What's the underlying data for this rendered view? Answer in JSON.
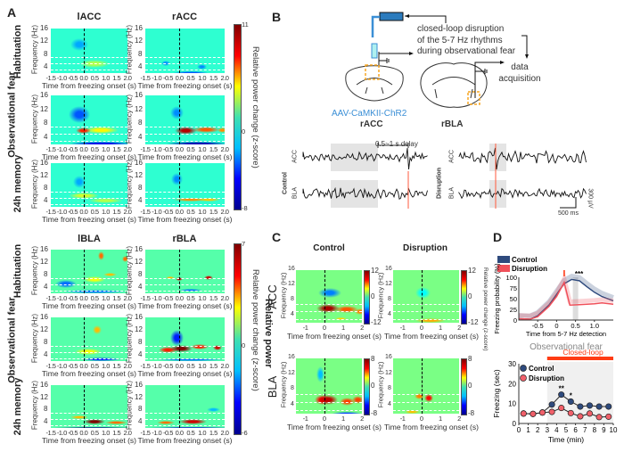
{
  "panel_labels": {
    "a": "A",
    "b": "B",
    "c": "C",
    "d": "D"
  },
  "panel_a": {
    "acc_columns": [
      "lACC",
      "rACC"
    ],
    "bla_columns": [
      "lBLA",
      "rBLA"
    ],
    "rows": [
      "Habituation",
      "Observational fear",
      "24h memory"
    ],
    "xlabel": "Time from freezing onset (s)",
    "ylabel": "Frequency (Hz)",
    "xticks": [
      "-1.5",
      "-1.0",
      "-0.5",
      "0.0",
      "0.5",
      "1.0",
      "1.5",
      "2.0"
    ],
    "yticks": [
      "4",
      "8",
      "12",
      "16"
    ],
    "acc_colorbar": {
      "max": "11",
      "mid": "0",
      "min": "-8",
      "label": "Relative power change (z-score)"
    },
    "bla_colorbar": {
      "max": "7",
      "mid": "0",
      "min": "-6",
      "label": "Relative power change (z-score)"
    },
    "side_label": "Relative power"
  },
  "panel_b": {
    "caption_lines": [
      "closed-loop disruption",
      "of the 5-7 Hz rhythms",
      "during observational fear"
    ],
    "data_acq_lines": [
      "data",
      "acquisition"
    ],
    "virus": "AAV-CaMKII-ChR2",
    "region_left": "rACC",
    "region_right": "rBLA",
    "delay": "0.5~1 s delay",
    "control": "Control",
    "disruption": "Disruption",
    "trace_acc": "ACC",
    "trace_bla": "BLA",
    "scale_time": "500 ms",
    "scale_volt": "300 µV",
    "colors": {
      "laser": "#2b7bbd",
      "virus_text": "#3b8fd6",
      "stim_line": "#ff5a3c",
      "roi_box": "#f5a623"
    }
  },
  "panel_c": {
    "columns": [
      "Control",
      "Disruption"
    ],
    "rows": [
      "ACC",
      "BLA"
    ],
    "xlabel": "Time from freezing onset (s)",
    "ylabel": "Frequency (Hz)",
    "xticks": [
      "-1",
      "0",
      "1",
      "2"
    ],
    "yticks": [
      "4",
      "8",
      "12",
      "16"
    ],
    "acc_colorbar": {
      "max": "12",
      "mid": "0",
      "min": "-12"
    },
    "bla_colorbar": {
      "max": "8",
      "mid": "0",
      "min": "-8"
    },
    "side_label": "Relative power change (z-score)"
  },
  "chart_data": [
    {
      "type": "heatmap",
      "panel": "A",
      "region": "lACC",
      "session": "Habituation",
      "xlim": [
        -1.5,
        2
      ],
      "ylim": [
        2,
        16
      ],
      "zlim": [
        -8,
        11
      ],
      "band_lines_hz": [
        3,
        5,
        7
      ],
      "hotspots": [
        {
          "t": 0.5,
          "f": 5,
          "z": 2.5,
          "wt": 0.7,
          "wf": 1.2
        },
        {
          "t": -0.2,
          "f": 11,
          "z": -2.5,
          "wt": 0.4,
          "wf": 2
        }
      ]
    },
    {
      "type": "heatmap",
      "panel": "A",
      "region": "rACC",
      "session": "Habituation",
      "xlim": [
        -1.5,
        2
      ],
      "ylim": [
        2,
        16
      ],
      "zlim": [
        -8,
        11
      ],
      "band_lines_hz": [
        3,
        5,
        7
      ],
      "hotspots": [
        {
          "t": -0.6,
          "f": 5,
          "z": -3,
          "wt": 0.2,
          "wf": 0.8
        },
        {
          "t": 1,
          "f": 4,
          "z": -3,
          "wt": 0.2,
          "wf": 0.8
        },
        {
          "t": 0.5,
          "f": 2.2,
          "z": -4,
          "wt": 0.8,
          "wf": 0.4
        }
      ]
    },
    {
      "type": "heatmap",
      "panel": "A",
      "region": "lACC",
      "session": "Observational fear",
      "xlim": [
        -1.5,
        2
      ],
      "ylim": [
        2,
        16
      ],
      "zlim": [
        -8,
        11
      ],
      "band_lines_hz": [
        3,
        5,
        7
      ],
      "hotspots": [
        {
          "t": -0.2,
          "f": 10.5,
          "z": -4,
          "wt": 0.5,
          "wf": 2.5
        },
        {
          "t": 0.8,
          "f": 6,
          "z": 4,
          "wt": 0.8,
          "wf": 1
        },
        {
          "t": 0,
          "f": 6,
          "z": 8,
          "wt": 0.35,
          "wf": 0.9
        },
        {
          "t": 0.8,
          "f": 2.3,
          "z": -6,
          "wt": 1.5,
          "wf": 0.5
        }
      ]
    },
    {
      "type": "heatmap",
      "panel": "A",
      "region": "rACC",
      "session": "Observational fear",
      "xlim": [
        -1.5,
        2
      ],
      "ylim": [
        2,
        16
      ],
      "zlim": [
        -8,
        11
      ],
      "band_lines_hz": [
        3,
        5,
        7
      ],
      "hotspots": [
        {
          "t": -0.1,
          "f": 11,
          "z": -3,
          "wt": 0.3,
          "wf": 2
        },
        {
          "t": 1.2,
          "f": 6.3,
          "z": 7,
          "wt": 0.6,
          "wf": 0.9
        },
        {
          "t": 1.9,
          "f": 6,
          "z": 6,
          "wt": 0.2,
          "wf": 0.8
        },
        {
          "t": 0.3,
          "f": 6,
          "z": 10,
          "wt": 0.5,
          "wf": 1.1
        },
        {
          "t": 0.8,
          "f": 2.3,
          "z": -7,
          "wt": 1.4,
          "wf": 0.5
        }
      ]
    },
    {
      "type": "heatmap",
      "panel": "A",
      "region": "lACC",
      "session": "24h memory",
      "xlim": [
        -1.5,
        2
      ],
      "ylim": [
        2,
        16
      ],
      "zlim": [
        -8,
        11
      ],
      "band_lines_hz": [
        3,
        5,
        7
      ],
      "hotspots": [
        {
          "t": -0.2,
          "f": 10,
          "z": -2.5,
          "wt": 0.3,
          "wf": 2
        },
        {
          "t": 0,
          "f": 5.5,
          "z": 3,
          "wt": 0.7,
          "wf": 1
        },
        {
          "t": 1,
          "f": 4,
          "z": 2.5,
          "wt": 0.8,
          "wf": 0.8
        }
      ]
    },
    {
      "type": "heatmap",
      "panel": "A",
      "region": "rACC",
      "session": "24h memory",
      "xlim": [
        -1.5,
        2
      ],
      "ylim": [
        2,
        16
      ],
      "zlim": [
        -8,
        11
      ],
      "band_lines_hz": [
        3,
        5,
        7
      ],
      "hotspots": [
        {
          "t": -0.1,
          "f": 11,
          "z": -3,
          "wt": 0.25,
          "wf": 2
        },
        {
          "t": 0.5,
          "f": 4.2,
          "z": 6,
          "wt": 0.8,
          "wf": 0.6
        },
        {
          "t": 1.3,
          "f": 4.2,
          "z": 5,
          "wt": 0.5,
          "wf": 0.6
        }
      ]
    },
    {
      "type": "heatmap",
      "panel": "A",
      "region": "lBLA",
      "session": "Habituation",
      "xlim": [
        -1.5,
        2
      ],
      "ylim": [
        2,
        16
      ],
      "zlim": [
        -6,
        7
      ],
      "band_lines_hz": [
        3,
        5,
        7
      ],
      "hotspots": [
        {
          "t": -0.8,
          "f": 5,
          "z": -3,
          "wt": 0.5,
          "wf": 1.2
        },
        {
          "t": 0.5,
          "f": 6.5,
          "z": 2,
          "wt": 0.5,
          "wf": 1
        },
        {
          "t": 1.2,
          "f": 8,
          "z": 3,
          "wt": 0.3,
          "wf": 0.6
        },
        {
          "t": 0.8,
          "f": 14,
          "z": 4,
          "wt": 0.15,
          "wf": 1.5
        },
        {
          "t": 1.9,
          "f": 13,
          "z": 4,
          "wt": 0.15,
          "wf": 1
        },
        {
          "t": 0.5,
          "f": 2.5,
          "z": -3,
          "wt": 1.5,
          "wf": 0.6
        }
      ]
    },
    {
      "type": "heatmap",
      "panel": "A",
      "region": "rBLA",
      "session": "Habituation",
      "xlim": [
        -1.5,
        2
      ],
      "ylim": [
        2,
        16
      ],
      "zlim": [
        -6,
        7
      ],
      "band_lines_hz": [
        3,
        5,
        7
      ],
      "hotspots": [
        {
          "t": -0.4,
          "f": 7,
          "z": 3,
          "wt": 0.2,
          "wf": 0.5
        },
        {
          "t": 0,
          "f": 6.5,
          "z": 6,
          "wt": 0.15,
          "wf": 0.6
        },
        {
          "t": 1.3,
          "f": 7,
          "z": 6,
          "wt": 0.2,
          "wf": 0.7
        },
        {
          "t": 0.5,
          "f": 3,
          "z": -3,
          "wt": 0.5,
          "wf": 0.5
        }
      ]
    },
    {
      "type": "heatmap",
      "panel": "A",
      "region": "lBLA",
      "session": "Observational fear",
      "xlim": [
        -1.5,
        2
      ],
      "ylim": [
        2,
        16
      ],
      "zlim": [
        -6,
        7
      ],
      "band_lines_hz": [
        3,
        5,
        7
      ],
      "hotspots": [
        {
          "t": 0.6,
          "f": 12,
          "z": 3,
          "wt": 0.2,
          "wf": 1.5
        },
        {
          "t": 0.2,
          "f": 5,
          "z": 2,
          "wt": 0.6,
          "wf": 1
        },
        {
          "t": 0.8,
          "f": 2.5,
          "z": -4,
          "wt": 0.9,
          "wf": 0.6
        }
      ]
    },
    {
      "type": "heatmap",
      "panel": "A",
      "region": "rBLA",
      "session": "Observational fear",
      "xlim": [
        -1.5,
        2
      ],
      "ylim": [
        2,
        16
      ],
      "zlim": [
        -6,
        7
      ],
      "band_lines_hz": [
        3,
        5,
        7
      ],
      "hotspots": [
        {
          "t": -0.1,
          "f": 9.5,
          "z": -4,
          "wt": 0.3,
          "wf": 2.5
        },
        {
          "t": -0.5,
          "f": 5.5,
          "z": 5,
          "wt": 0.4,
          "wf": 1
        },
        {
          "t": 0.9,
          "f": 6.5,
          "z": 5,
          "wt": 0.4,
          "wf": 0.8
        },
        {
          "t": 1.7,
          "f": 6.3,
          "z": 6,
          "wt": 0.2,
          "wf": 0.9
        },
        {
          "t": 0.1,
          "f": 6,
          "z": 7,
          "wt": 0.5,
          "wf": 1.1
        },
        {
          "t": 0.5,
          "f": 2.5,
          "z": -3,
          "wt": 1.5,
          "wf": 0.5
        }
      ]
    },
    {
      "type": "heatmap",
      "panel": "A",
      "region": "lBLA",
      "session": "24h memory",
      "xlim": [
        -1.5,
        2
      ],
      "ylim": [
        2,
        16
      ],
      "zlim": [
        -6,
        7
      ],
      "band_lines_hz": [
        3,
        5,
        7
      ],
      "hotspots": [
        {
          "t": -0.2,
          "f": 5.5,
          "z": 3,
          "wt": 0.4,
          "wf": 0.7
        },
        {
          "t": 1.5,
          "f": 3.7,
          "z": 4,
          "wt": 0.5,
          "wf": 0.6
        },
        {
          "t": 0.5,
          "f": 4,
          "z": 7,
          "wt": 0.5,
          "wf": 0.9
        },
        {
          "t": 0.5,
          "f": 2,
          "z": -6,
          "wt": 2,
          "wf": 0.3
        }
      ]
    },
    {
      "type": "heatmap",
      "panel": "A",
      "region": "rBLA",
      "session": "24h memory",
      "xlim": [
        -1.5,
        2
      ],
      "ylim": [
        2,
        16
      ],
      "zlim": [
        -6,
        7
      ],
      "band_lines_hz": [
        3,
        5,
        7
      ],
      "hotspots": [
        {
          "t": 1.5,
          "f": 8,
          "z": -2,
          "wt": 0.3,
          "wf": 0.8
        },
        {
          "t": -0.6,
          "f": 3.8,
          "z": 4,
          "wt": 0.4,
          "wf": 0.6
        },
        {
          "t": 0.6,
          "f": 4,
          "z": 6,
          "wt": 0.6,
          "wf": 0.9
        },
        {
          "t": 0.5,
          "f": 2,
          "z": -5,
          "wt": 2,
          "wf": 0.3
        }
      ]
    },
    {
      "type": "heatmap",
      "panel": "C",
      "region": "ACC",
      "group": "Control",
      "xlim": [
        -1.5,
        2
      ],
      "ylim": [
        2,
        16
      ],
      "zlim": [
        -12,
        12
      ],
      "band_lines_hz": [
        3,
        5,
        7
      ],
      "hotspots": [
        {
          "t": 0.3,
          "f": 10,
          "z": -6,
          "wt": 0.6,
          "wf": 1.3
        },
        {
          "t": 1.2,
          "f": 5.5,
          "z": 7,
          "wt": 0.6,
          "wf": 0.9
        },
        {
          "t": 1.9,
          "f": 5,
          "z": 6,
          "wt": 0.3,
          "wf": 0.8
        },
        {
          "t": 0.9,
          "f": 3,
          "z": 4,
          "wt": 0.3,
          "wf": 0.4
        },
        {
          "t": 0.2,
          "f": 5.8,
          "z": 11,
          "wt": 0.6,
          "wf": 1.2
        }
      ]
    },
    {
      "type": "heatmap",
      "panel": "C",
      "region": "ACC",
      "group": "Disruption",
      "xlim": [
        -1.5,
        2
      ],
      "ylim": [
        2,
        16
      ],
      "zlim": [
        -12,
        12
      ],
      "band_lines_hz": [
        3,
        5,
        7
      ],
      "hotspots": [
        {
          "t": 0.1,
          "f": 10,
          "z": -3,
          "wt": 0.4,
          "wf": 1.5
        },
        {
          "t": 0.5,
          "f": 2.5,
          "z": 5,
          "wt": 0.8,
          "wf": 0.6
        }
      ]
    },
    {
      "type": "heatmap",
      "panel": "C",
      "region": "BLA",
      "group": "Control",
      "xlim": [
        -1.5,
        2
      ],
      "ylim": [
        2,
        16
      ],
      "zlim": [
        -8,
        8
      ],
      "band_lines_hz": [
        3,
        5,
        7
      ],
      "hotspots": [
        {
          "t": -0.2,
          "f": 12,
          "z": -3,
          "wt": 0.2,
          "wf": 2
        },
        {
          "t": -0.1,
          "f": 5.5,
          "z": 6,
          "wt": 0.4,
          "wf": 1.2
        },
        {
          "t": 1.2,
          "f": 5,
          "z": 5,
          "wt": 0.4,
          "wf": 1
        },
        {
          "t": 1.8,
          "f": 5.5,
          "z": 5,
          "wt": 0.3,
          "wf": 1
        },
        {
          "t": 0.2,
          "f": 5.5,
          "z": 7,
          "wt": 0.5,
          "wf": 1.2
        },
        {
          "t": 1.2,
          "f": 2,
          "z": -5,
          "wt": 0.8,
          "wf": 0.4
        }
      ]
    },
    {
      "type": "heatmap",
      "panel": "C",
      "region": "BLA",
      "group": "Disruption",
      "xlim": [
        -1.5,
        2
      ],
      "ylim": [
        2,
        16
      ],
      "zlim": [
        -8,
        8
      ],
      "band_lines_hz": [
        3,
        5,
        7
      ],
      "hotspots": [
        {
          "t": -0.5,
          "f": 2.5,
          "z": 3,
          "wt": 0.4,
          "wf": 0.5
        },
        {
          "t": -0.1,
          "f": 6.5,
          "z": 4,
          "wt": 0.25,
          "wf": 0.8
        },
        {
          "t": 0.4,
          "f": 6,
          "z": 6,
          "wt": 0.25,
          "wf": 1
        }
      ]
    },
    {
      "type": "line",
      "panel": "D-top",
      "xlabel": "Time from 5-7 Hz detection",
      "ylabel": "Freezing probability (%)",
      "xlim": [
        -1,
        1.5
      ],
      "ylim": [
        0,
        100
      ],
      "xticks": [
        "-0.5",
        "0",
        "0.5",
        "1.0"
      ],
      "yticks": [
        "0",
        "25",
        "50",
        "75",
        "100"
      ],
      "annotation": "***",
      "annotation_x": 0.5,
      "stim_x": 0.2,
      "series": [
        {
          "name": "Control",
          "color": "#2e4a7d",
          "x": [
            -1,
            -0.7,
            -0.5,
            -0.2,
            0,
            0.2,
            0.4,
            0.6,
            0.8,
            1.0,
            1.2,
            1.5
          ],
          "y": [
            3,
            2,
            10,
            35,
            60,
            85,
            95,
            92,
            78,
            65,
            55,
            45
          ]
        },
        {
          "name": "Disruption",
          "color": "#f0505a",
          "x": [
            -1,
            -0.7,
            -0.5,
            -0.2,
            0,
            0.2,
            0.35,
            0.6,
            0.8,
            1.0,
            1.2,
            1.5
          ],
          "y": [
            3,
            2,
            8,
            32,
            55,
            88,
            35,
            36,
            37,
            38,
            40,
            37
          ]
        }
      ]
    },
    {
      "type": "line",
      "panel": "D-bottom",
      "title": "Observational fear",
      "bar_label": "Closed-loop",
      "bar_range": [
        3,
        10
      ],
      "xlabel": "Time (min)",
      "ylabel": "Freezing (sec)",
      "xlim": [
        0,
        10
      ],
      "ylim": [
        0,
        30
      ],
      "xticks": [
        "0",
        "1",
        "2",
        "3",
        "4",
        "5",
        "6",
        "7",
        "8",
        "9",
        "10"
      ],
      "yticks": [
        "0",
        "10",
        "20",
        "30"
      ],
      "annotations": [
        {
          "x": 4.5,
          "text": "**"
        },
        {
          "x": 5.5,
          "text": "*"
        }
      ],
      "series": [
        {
          "name": "Control",
          "color": "#2e4a7d",
          "x": [
            0.5,
            1.5,
            2.5,
            3.5,
            4.5,
            5.5,
            6.5,
            7.5,
            8.5,
            9.5
          ],
          "y": [
            5,
            4.8,
            5.5,
            9.5,
            14.5,
            11,
            8.5,
            9,
            8.5,
            8.5
          ]
        },
        {
          "name": "Disruption",
          "color": "#f0606a",
          "x": [
            0.5,
            1.5,
            2.5,
            3.5,
            4.5,
            5.5,
            6.5,
            7.5,
            8.5,
            9.5
          ],
          "y": [
            5,
            4.8,
            5.5,
            5.8,
            7.8,
            5.2,
            3.6,
            5,
            3.2,
            3.4
          ]
        }
      ]
    }
  ]
}
